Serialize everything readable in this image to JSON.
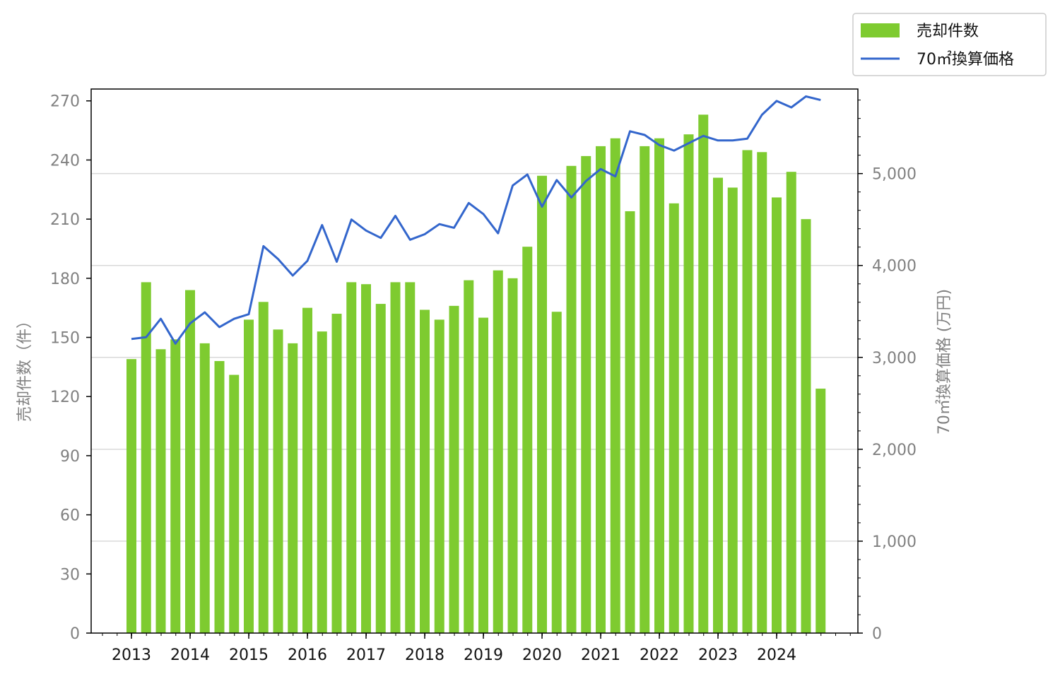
{
  "chart_data": {
    "type": "bar",
    "colors": {
      "bars": "#7ecb30",
      "line": "#3366cc",
      "grid": "#d9d9d9"
    },
    "legend": {
      "placement": "top-right",
      "bar_label": "売却件数",
      "line_label": "70㎡換算価格"
    },
    "y_left": {
      "label": "売却件数（件）",
      "range": [
        0,
        276
      ],
      "ticks": [
        "0",
        "30",
        "60",
        "90",
        "120",
        "150",
        "180",
        "210",
        "240",
        "270"
      ]
    },
    "y_right": {
      "label": "70㎡換算価格 (万円)",
      "range": [
        0,
        5920
      ],
      "ticks": [
        "0",
        "1,000",
        "2,000",
        "3,000",
        "4,000",
        "5,000"
      ]
    },
    "x_ticks": [
      "2013",
      "2014",
      "2015",
      "2016",
      "2017",
      "2018",
      "2019",
      "2020",
      "2021",
      "2022",
      "2023",
      "2024"
    ],
    "grid": "horizontal lines at right-axis ticks",
    "series": [
      {
        "name": "売却件数",
        "type": "bar",
        "values": [
          139,
          178,
          144,
          149,
          174,
          147,
          138,
          131,
          159,
          168,
          154,
          147,
          165,
          153,
          162,
          178,
          177,
          167,
          178,
          178,
          164,
          159,
          166,
          179,
          160,
          184,
          180,
          196,
          232,
          163,
          237,
          242,
          247,
          251,
          214,
          247,
          251,
          218,
          253,
          263,
          231,
          226,
          245,
          244,
          221,
          234,
          210,
          124
        ]
      },
      {
        "name": "70㎡換算価格",
        "type": "line",
        "values": [
          3200,
          3220,
          3420,
          3150,
          3370,
          3490,
          3330,
          3420,
          3470,
          4210,
          4070,
          3890,
          4050,
          4440,
          4040,
          4500,
          4380,
          4300,
          4540,
          4280,
          4340,
          4450,
          4410,
          4680,
          4560,
          4350,
          4870,
          4990,
          4640,
          4930,
          4740,
          4920,
          5050,
          4970,
          5460,
          5420,
          5310,
          5250,
          5330,
          5410,
          5360,
          5360,
          5380,
          5640,
          5790,
          5720,
          5840,
          5800
        ]
      }
    ]
  }
}
